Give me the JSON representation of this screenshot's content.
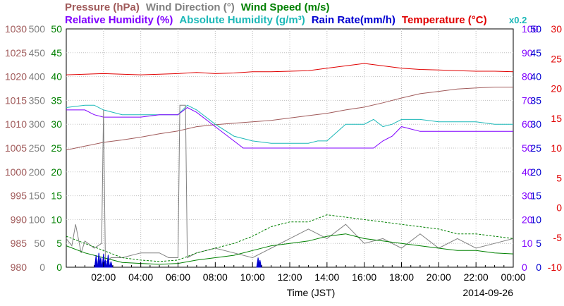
{
  "chart_data": {
    "type": "line",
    "xlabel": "Time (JST)",
    "date": "2014-09-26",
    "x_ticks": [
      "02:00",
      "04:00",
      "06:00",
      "08:00",
      "10:00",
      "12:00",
      "14:00",
      "16:00",
      "18:00",
      "20:00",
      "22:00",
      "00:00"
    ],
    "x_range_hours": [
      0,
      24
    ],
    "grid": true,
    "legend": [
      {
        "label": "Pressure (hPa)",
        "color": "#a05a5a",
        "row": 1
      },
      {
        "label": "Wind Direction (°)",
        "color": "#808080",
        "row": 1
      },
      {
        "label": "Wind Speed (m/s)",
        "color": "#008000",
        "row": 1
      },
      {
        "label": "Relative Humidity (%)",
        "color": "#8000ff",
        "row": 2
      },
      {
        "label": "Absolute Humidity (g/m³)",
        "color": "#1cb8b8",
        "row": 2
      },
      {
        "label": "Rain Rate(mm/h)",
        "color": "#0000d0",
        "row": 2
      },
      {
        "label": "Temperature (°C)",
        "color": "#e00000",
        "row": 2
      }
    ],
    "multiplier_note": "x0.2",
    "multiplier_color": "#1cb8b8",
    "axes": [
      {
        "name": "Pressure (hPa)",
        "side": "left",
        "color": "#a05a5a",
        "range": [
          980,
          1030
        ],
        "ticks": [
          "980",
          "985",
          "990",
          "995",
          "1000",
          "1005",
          "1010",
          "1015",
          "1020",
          "1025",
          "1030"
        ]
      },
      {
        "name": "Wind Direction (°)",
        "side": "left",
        "color": "#808080",
        "range": [
          0,
          500
        ],
        "ticks": [
          "0",
          "50",
          "100",
          "150",
          "200",
          "250",
          "300",
          "350",
          "400",
          "450",
          "500"
        ]
      },
      {
        "name": "Wind Speed (m/s)",
        "side": "left",
        "color": "#008000",
        "range": [
          0,
          50
        ],
        "ticks": [
          "0",
          "5",
          "10",
          "15",
          "20",
          "25",
          "30",
          "35",
          "40",
          "45",
          "50"
        ]
      },
      {
        "name": "Relative Humidity (%)",
        "side": "right",
        "color": "#8000ff",
        "range": [
          0,
          100
        ],
        "ticks": [
          "0",
          "10",
          "20",
          "30",
          "40",
          "50",
          "60",
          "70",
          "80",
          "90",
          "100"
        ]
      },
      {
        "name": "Rain Rate(mm/h)",
        "side": "right",
        "color": "#0000d0",
        "range": [
          0,
          50
        ],
        "ticks": [
          "0",
          "5",
          "10",
          "15",
          "20",
          "25",
          "30",
          "35",
          "40",
          "45",
          "50"
        ]
      },
      {
        "name": "Temperature (°C)",
        "side": "right",
        "color": "#e00000",
        "range": [
          -10,
          30
        ],
        "ticks": [
          "-10",
          "-5",
          "0",
          "5",
          "10",
          "15",
          "20",
          "25",
          "30"
        ]
      }
    ],
    "series": [
      {
        "name": "Pressure (hPa)",
        "color": "#a05a5a",
        "axis": 0,
        "x": [
          0,
          1,
          2,
          3,
          4,
          5,
          6,
          7,
          8,
          9,
          10,
          11,
          12,
          13,
          14,
          15,
          16,
          17,
          18,
          19,
          20,
          21,
          22,
          23,
          24
        ],
        "y": [
          1004.6,
          1005.4,
          1006.2,
          1006.7,
          1007.3,
          1008.0,
          1008.6,
          1009.5,
          1009.9,
          1010.2,
          1010.5,
          1010.8,
          1011.3,
          1011.8,
          1012.3,
          1013.0,
          1013.6,
          1014.5,
          1015.5,
          1016.4,
          1016.9,
          1017.4,
          1017.6,
          1017.8,
          1017.8
        ]
      },
      {
        "name": "Temperature (°C)",
        "color": "#e00000",
        "axis": 5,
        "x": [
          0,
          1,
          2,
          3,
          4,
          5,
          6,
          7,
          8,
          9,
          10,
          11,
          12,
          13,
          14,
          15,
          16,
          17,
          18,
          19,
          20,
          21,
          22,
          23,
          24
        ],
        "y": [
          22.3,
          22.4,
          22.5,
          22.4,
          22.3,
          22.4,
          22.5,
          22.7,
          22.5,
          22.6,
          22.8,
          22.8,
          22.9,
          23.0,
          23.4,
          23.8,
          24.2,
          23.8,
          23.4,
          23.2,
          23.1,
          23.0,
          22.9,
          22.9,
          22.8
        ]
      },
      {
        "name": "Absolute Humidity (g/m³)",
        "color": "#1cb8b8",
        "axis": 3,
        "x": [
          0,
          1,
          1.5,
          2,
          3,
          4,
          5,
          6,
          6.5,
          7,
          8,
          9,
          10,
          11,
          12,
          13,
          13.5,
          14,
          15,
          16,
          16.5,
          17,
          17.5,
          18,
          19,
          20,
          21,
          22,
          23,
          24
        ],
        "y": [
          67,
          68,
          68,
          66,
          64,
          64,
          64,
          64,
          68,
          66,
          60,
          55,
          53,
          52,
          52,
          52,
          53,
          53,
          60,
          60,
          62,
          59,
          60,
          62,
          62,
          61,
          61,
          61,
          60,
          60
        ]
      },
      {
        "name": "Relative Humidity (%)",
        "color": "#8000ff",
        "axis": 3,
        "x": [
          0,
          1,
          1.5,
          2,
          3,
          4,
          5,
          6,
          6.5,
          7,
          8,
          9,
          9.5,
          10,
          11,
          12,
          13,
          14,
          15,
          16,
          16.5,
          17,
          17.5,
          18,
          19,
          20,
          21,
          22,
          23,
          24
        ],
        "y": [
          66,
          66,
          64,
          63,
          63,
          63,
          64,
          64,
          67,
          65,
          59,
          53,
          50,
          50,
          50,
          50,
          50,
          50,
          50,
          50,
          50,
          53,
          55,
          59,
          57,
          57,
          57,
          57,
          57,
          57
        ]
      },
      {
        "name": "Wind Direction (°)",
        "color": "#808080",
        "axis": 1,
        "x": [
          0,
          0.3,
          0.5,
          0.8,
          1.0,
          1.5,
          1.9,
          2.0,
          2.1,
          2.4,
          3.0,
          4.0,
          5.0,
          5.5,
          6.0,
          6.1,
          6.2,
          6.4,
          6.5,
          7.0,
          8.0,
          9.0,
          10.0,
          11.0,
          12.0,
          13.0,
          14.0,
          15.0,
          16.0,
          17.0,
          18.0,
          19.0,
          20.0,
          21.0,
          22.0,
          23.0,
          24.0
        ],
        "y": [
          60,
          45,
          90,
          30,
          55,
          40,
          50,
          330,
          10,
          20,
          20,
          30,
          30,
          20,
          20,
          340,
          340,
          340,
          20,
          30,
          40,
          30,
          20,
          40,
          60,
          80,
          60,
          90,
          50,
          60,
          40,
          70,
          40,
          60,
          40,
          50,
          60
        ]
      },
      {
        "name": "Wind Speed (m/s)",
        "color": "#008000",
        "axis": 2,
        "x": [
          0,
          1,
          2,
          3,
          4,
          5,
          6,
          7,
          8,
          9,
          10,
          11,
          12,
          13,
          14,
          15,
          16,
          17,
          18,
          19,
          20,
          21,
          22,
          23,
          24
        ],
        "y": [
          4.5,
          3.0,
          2.0,
          1.0,
          0.8,
          0.6,
          0.8,
          1.5,
          2.0,
          2.5,
          3.5,
          4.5,
          5.0,
          5.5,
          6.5,
          7.0,
          6.0,
          5.5,
          5.0,
          4.5,
          4.0,
          3.5,
          3.5,
          3.0,
          2.8
        ]
      },
      {
        "name": "Wind Speed (m/s)",
        "style": "dashed",
        "color": "#008000",
        "axis": 2,
        "x": [
          0,
          1,
          2,
          3,
          4,
          5,
          6,
          7,
          8,
          9,
          10,
          11,
          12,
          13,
          14,
          15,
          16,
          17,
          18,
          19,
          20,
          21,
          22,
          23,
          24
        ],
        "y": [
          6.5,
          5.0,
          3.5,
          2.0,
          1.5,
          1.2,
          1.5,
          3.0,
          4.0,
          5.0,
          6.5,
          8.5,
          9.5,
          9.5,
          11.0,
          10.5,
          10.0,
          9.5,
          9.0,
          8.5,
          8.0,
          7.0,
          7.0,
          6.5,
          6.0
        ]
      },
      {
        "name": "Rain Rate(mm/h)",
        "color": "#0000d0",
        "axis": 4,
        "type": "spikes",
        "x": [
          1.6,
          1.75,
          1.85,
          2.0,
          2.1,
          2.25,
          2.4,
          10.3,
          10.4
        ],
        "y": [
          2.5,
          3.0,
          2.0,
          2.8,
          1.5,
          2.6,
          1.2,
          2.0,
          1.5
        ]
      }
    ]
  }
}
